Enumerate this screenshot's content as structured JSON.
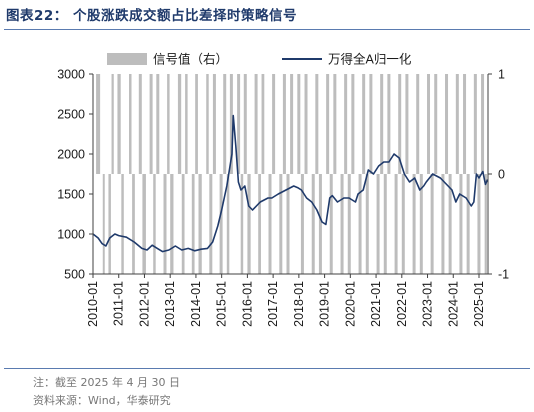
{
  "header": {
    "title": "图表22： 个股涨跌成交额占比差择时策略信号"
  },
  "footer": {
    "note": "注：截至 2025 年 4 月 30 日",
    "source": "资料来源：Wind，华泰研究"
  },
  "colors": {
    "line": "#1f3a6b",
    "signal_bar": "#bdbdbd",
    "axis": "#404040"
  },
  "chart_data": {
    "type": "line",
    "legend": {
      "placement": "top",
      "bar_label": "信号值（右）",
      "line_label": "万得全A归一化"
    },
    "x_ticks": [
      "2010-01",
      "2011-01",
      "2012-01",
      "2013-01",
      "2014-01",
      "2015-01",
      "2016-01",
      "2017-01",
      "2018-01",
      "2019-01",
      "2020-01",
      "2021-01",
      "2022-01",
      "2023-01",
      "2024-01",
      "2025-01"
    ],
    "left_axis": {
      "ylim": [
        500,
        3000
      ],
      "ticks": [
        "500",
        "1000",
        "1500",
        "2000",
        "2500",
        "3000"
      ]
    },
    "right_axis": {
      "ylim": [
        -1,
        1
      ],
      "ticks": [
        "-1",
        "0",
        "1"
      ]
    },
    "series_line": {
      "name": "万得全A归一化",
      "x": [
        2010.0,
        2010.2,
        2010.35,
        2010.5,
        2010.65,
        2010.85,
        2011.0,
        2011.3,
        2011.6,
        2011.9,
        2012.1,
        2012.3,
        2012.5,
        2012.7,
        2012.95,
        2013.2,
        2013.45,
        2013.7,
        2013.95,
        2014.2,
        2014.45,
        2014.65,
        2014.85,
        2015.0,
        2015.2,
        2015.4,
        2015.45,
        2015.55,
        2015.65,
        2015.75,
        2015.9,
        2016.05,
        2016.2,
        2016.5,
        2016.8,
        2016.95,
        2017.2,
        2017.5,
        2017.8,
        2017.95,
        2018.1,
        2018.3,
        2018.5,
        2018.7,
        2018.9,
        2019.05,
        2019.2,
        2019.3,
        2019.5,
        2019.75,
        2019.95,
        2020.2,
        2020.3,
        2020.5,
        2020.7,
        2020.9,
        2021.1,
        2021.3,
        2021.5,
        2021.7,
        2021.9,
        2022.1,
        2022.3,
        2022.5,
        2022.7,
        2022.85,
        2022.95,
        2023.2,
        2023.5,
        2023.8,
        2023.95,
        2024.1,
        2024.25,
        2024.5,
        2024.7,
        2024.8,
        2024.9,
        2025.0,
        2025.15,
        2025.25,
        2025.33
      ],
      "y": [
        1000,
        950,
        880,
        850,
        950,
        1000,
        980,
        960,
        900,
        820,
        800,
        860,
        820,
        780,
        800,
        850,
        800,
        820,
        790,
        810,
        820,
        900,
        1100,
        1300,
        1600,
        2000,
        2480,
        2100,
        1650,
        1550,
        1600,
        1350,
        1300,
        1400,
        1450,
        1450,
        1500,
        1550,
        1600,
        1580,
        1550,
        1450,
        1400,
        1300,
        1150,
        1120,
        1450,
        1480,
        1400,
        1450,
        1450,
        1400,
        1500,
        1550,
        1800,
        1750,
        1850,
        1900,
        1900,
        2000,
        1950,
        1750,
        1650,
        1700,
        1550,
        1600,
        1650,
        1750,
        1700,
        1600,
        1550,
        1400,
        1500,
        1450,
        1350,
        1400,
        1750,
        1700,
        1780,
        1620,
        1680
      ]
    },
    "series_signal": {
      "name": "信号值（右）",
      "segments": [
        [
          2010.0,
          2010.12,
          0
        ],
        [
          2010.12,
          2010.3,
          1
        ],
        [
          2010.3,
          2010.38,
          0
        ],
        [
          2010.38,
          2010.48,
          -1
        ],
        [
          2010.48,
          2010.6,
          0
        ],
        [
          2010.6,
          2010.72,
          -1
        ],
        [
          2010.72,
          2010.83,
          1
        ],
        [
          2010.83,
          2010.95,
          0
        ],
        [
          2010.95,
          2011.1,
          1
        ],
        [
          2011.1,
          2011.22,
          -1
        ],
        [
          2011.22,
          2011.4,
          0
        ],
        [
          2011.4,
          2011.52,
          1
        ],
        [
          2011.52,
          2011.65,
          -1
        ],
        [
          2011.65,
          2011.78,
          0
        ],
        [
          2011.78,
          2011.92,
          1
        ],
        [
          2011.92,
          2012.08,
          -1
        ],
        [
          2012.08,
          2012.2,
          0
        ],
        [
          2012.2,
          2012.34,
          1
        ],
        [
          2012.34,
          2012.46,
          -1
        ],
        [
          2012.46,
          2012.6,
          1
        ],
        [
          2012.6,
          2012.74,
          0
        ],
        [
          2012.74,
          2012.88,
          -1
        ],
        [
          2012.88,
          2013.0,
          1
        ],
        [
          2013.0,
          2013.15,
          -1
        ],
        [
          2013.15,
          2013.3,
          0
        ],
        [
          2013.3,
          2013.45,
          1
        ],
        [
          2013.45,
          2013.58,
          -1
        ],
        [
          2013.58,
          2013.7,
          1
        ],
        [
          2013.7,
          2013.84,
          0
        ],
        [
          2013.84,
          2013.97,
          -1
        ],
        [
          2013.97,
          2014.1,
          1
        ],
        [
          2014.1,
          2014.25,
          -1
        ],
        [
          2014.25,
          2014.4,
          0
        ],
        [
          2014.4,
          2014.52,
          1
        ],
        [
          2014.52,
          2014.66,
          -1
        ],
        [
          2014.66,
          2014.8,
          1
        ],
        [
          2014.8,
          2014.92,
          0
        ],
        [
          2014.92,
          2015.06,
          -1
        ],
        [
          2015.06,
          2015.2,
          1
        ],
        [
          2015.2,
          2015.32,
          -1
        ],
        [
          2015.32,
          2015.46,
          1
        ],
        [
          2015.46,
          2015.6,
          0
        ],
        [
          2015.6,
          2015.74,
          1
        ],
        [
          2015.74,
          2015.86,
          -1
        ],
        [
          2015.86,
          2016.0,
          1
        ],
        [
          2016.0,
          2016.15,
          -1
        ],
        [
          2016.15,
          2016.28,
          0
        ],
        [
          2016.28,
          2016.42,
          1
        ],
        [
          2016.42,
          2016.55,
          -1
        ],
        [
          2016.55,
          2016.68,
          1
        ],
        [
          2016.68,
          2016.82,
          0
        ],
        [
          2016.82,
          2016.96,
          -1
        ],
        [
          2016.96,
          2017.1,
          1
        ],
        [
          2017.1,
          2017.24,
          0
        ],
        [
          2017.24,
          2017.38,
          -1
        ],
        [
          2017.38,
          2017.52,
          1
        ],
        [
          2017.52,
          2017.66,
          -1
        ],
        [
          2017.66,
          2017.8,
          1
        ],
        [
          2017.8,
          2017.94,
          0
        ],
        [
          2017.94,
          2018.08,
          1
        ],
        [
          2018.08,
          2018.22,
          -1
        ],
        [
          2018.22,
          2018.36,
          1
        ],
        [
          2018.36,
          2018.5,
          0
        ],
        [
          2018.5,
          2018.64,
          -1
        ],
        [
          2018.64,
          2018.78,
          1
        ],
        [
          2018.78,
          2018.92,
          -1
        ],
        [
          2018.92,
          2019.06,
          0
        ],
        [
          2019.06,
          2019.2,
          1
        ],
        [
          2019.2,
          2019.34,
          -1
        ],
        [
          2019.34,
          2019.48,
          1
        ],
        [
          2019.48,
          2019.62,
          0
        ],
        [
          2019.62,
          2019.76,
          -1
        ],
        [
          2019.76,
          2019.9,
          1
        ],
        [
          2019.9,
          2020.04,
          -1
        ],
        [
          2020.04,
          2020.18,
          1
        ],
        [
          2020.18,
          2020.32,
          0
        ],
        [
          2020.32,
          2020.46,
          -1
        ],
        [
          2020.46,
          2020.6,
          1
        ],
        [
          2020.6,
          2020.74,
          -1
        ],
        [
          2020.74,
          2020.88,
          1
        ],
        [
          2020.88,
          2021.02,
          0
        ],
        [
          2021.02,
          2021.16,
          -1
        ],
        [
          2021.16,
          2021.3,
          1
        ],
        [
          2021.3,
          2021.44,
          -1
        ],
        [
          2021.44,
          2021.58,
          1
        ],
        [
          2021.58,
          2021.72,
          0
        ],
        [
          2021.72,
          2021.86,
          -1
        ],
        [
          2021.86,
          2022.0,
          1
        ],
        [
          2022.0,
          2022.14,
          -1
        ],
        [
          2022.14,
          2022.28,
          1
        ],
        [
          2022.28,
          2022.42,
          0
        ],
        [
          2022.42,
          2022.56,
          -1
        ],
        [
          2022.56,
          2022.7,
          1
        ],
        [
          2022.7,
          2022.84,
          -1
        ],
        [
          2022.84,
          2022.98,
          0
        ],
        [
          2022.98,
          2023.12,
          1
        ],
        [
          2023.12,
          2023.26,
          -1
        ],
        [
          2023.26,
          2023.4,
          1
        ],
        [
          2023.4,
          2023.54,
          0
        ],
        [
          2023.54,
          2023.68,
          -1
        ],
        [
          2023.68,
          2023.82,
          1
        ],
        [
          2023.82,
          2023.96,
          -1
        ],
        [
          2023.96,
          2024.1,
          0
        ],
        [
          2024.1,
          2024.24,
          1
        ],
        [
          2024.24,
          2024.38,
          -1
        ],
        [
          2024.38,
          2024.52,
          1
        ],
        [
          2024.52,
          2024.66,
          -1
        ],
        [
          2024.66,
          2024.8,
          0
        ],
        [
          2024.8,
          2024.94,
          1
        ],
        [
          2024.94,
          2025.08,
          -1
        ],
        [
          2025.08,
          2025.22,
          1
        ],
        [
          2025.22,
          2025.33,
          -1
        ]
      ]
    }
  }
}
